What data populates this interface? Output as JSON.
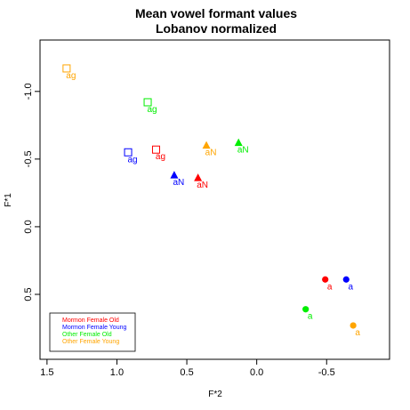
{
  "chart_data": {
    "type": "scatter",
    "title": [
      "Mean vowel formant values",
      "Lobanov normalized"
    ],
    "xlabel": "F*2",
    "ylabel": "F*1",
    "xlim": [
      1.55,
      -0.95
    ],
    "ylim": [
      -1.38,
      0.98
    ],
    "x_reversed": true,
    "y_reversed": true,
    "xticks": [
      {
        "value": 1.5,
        "label": "1.5"
      },
      {
        "value": 1.0,
        "label": "1.0"
      },
      {
        "value": 0.5,
        "label": "0.5"
      },
      {
        "value": 0.0,
        "label": "0.0"
      },
      {
        "value": -0.5,
        "label": "-0.5"
      }
    ],
    "yticks": [
      {
        "value": -1.0,
        "label": "-1.0"
      },
      {
        "value": -0.5,
        "label": "-0.5"
      },
      {
        "value": 0.0,
        "label": "0.0"
      },
      {
        "value": 0.5,
        "label": "0.5"
      }
    ],
    "legend_position": "bottom-left",
    "series": [
      {
        "name": "Mormon Female Old",
        "color": "#ff0000",
        "points": [
          {
            "vowel": "ag",
            "marker": "square",
            "x": 0.72,
            "y": -0.57
          },
          {
            "vowel": "aN",
            "marker": "triangle",
            "x": 0.42,
            "y": -0.36
          },
          {
            "vowel": "a",
            "marker": "circle",
            "x": -0.49,
            "y": 0.39
          }
        ]
      },
      {
        "name": "Mormon Female Young",
        "color": "#0000ff",
        "points": [
          {
            "vowel": "ag",
            "marker": "square",
            "x": 0.92,
            "y": -0.55
          },
          {
            "vowel": "aN",
            "marker": "triangle",
            "x": 0.59,
            "y": -0.38
          },
          {
            "vowel": "a",
            "marker": "circle",
            "x": -0.64,
            "y": 0.39
          }
        ]
      },
      {
        "name": "Other Female Old",
        "color": "#00ee00",
        "points": [
          {
            "vowel": "ag",
            "marker": "square",
            "x": 0.78,
            "y": -0.92
          },
          {
            "vowel": "aN",
            "marker": "triangle",
            "x": 0.13,
            "y": -0.62
          },
          {
            "vowel": "a",
            "marker": "circle",
            "x": -0.35,
            "y": 0.61
          }
        ]
      },
      {
        "name": "Other Female Young",
        "color": "#ffa500",
        "points": [
          {
            "vowel": "ag",
            "marker": "square",
            "x": 1.36,
            "y": -1.17
          },
          {
            "vowel": "aN",
            "marker": "triangle",
            "x": 0.36,
            "y": -0.6
          },
          {
            "vowel": "a",
            "marker": "circle",
            "x": -0.69,
            "y": 0.73
          }
        ]
      }
    ]
  }
}
